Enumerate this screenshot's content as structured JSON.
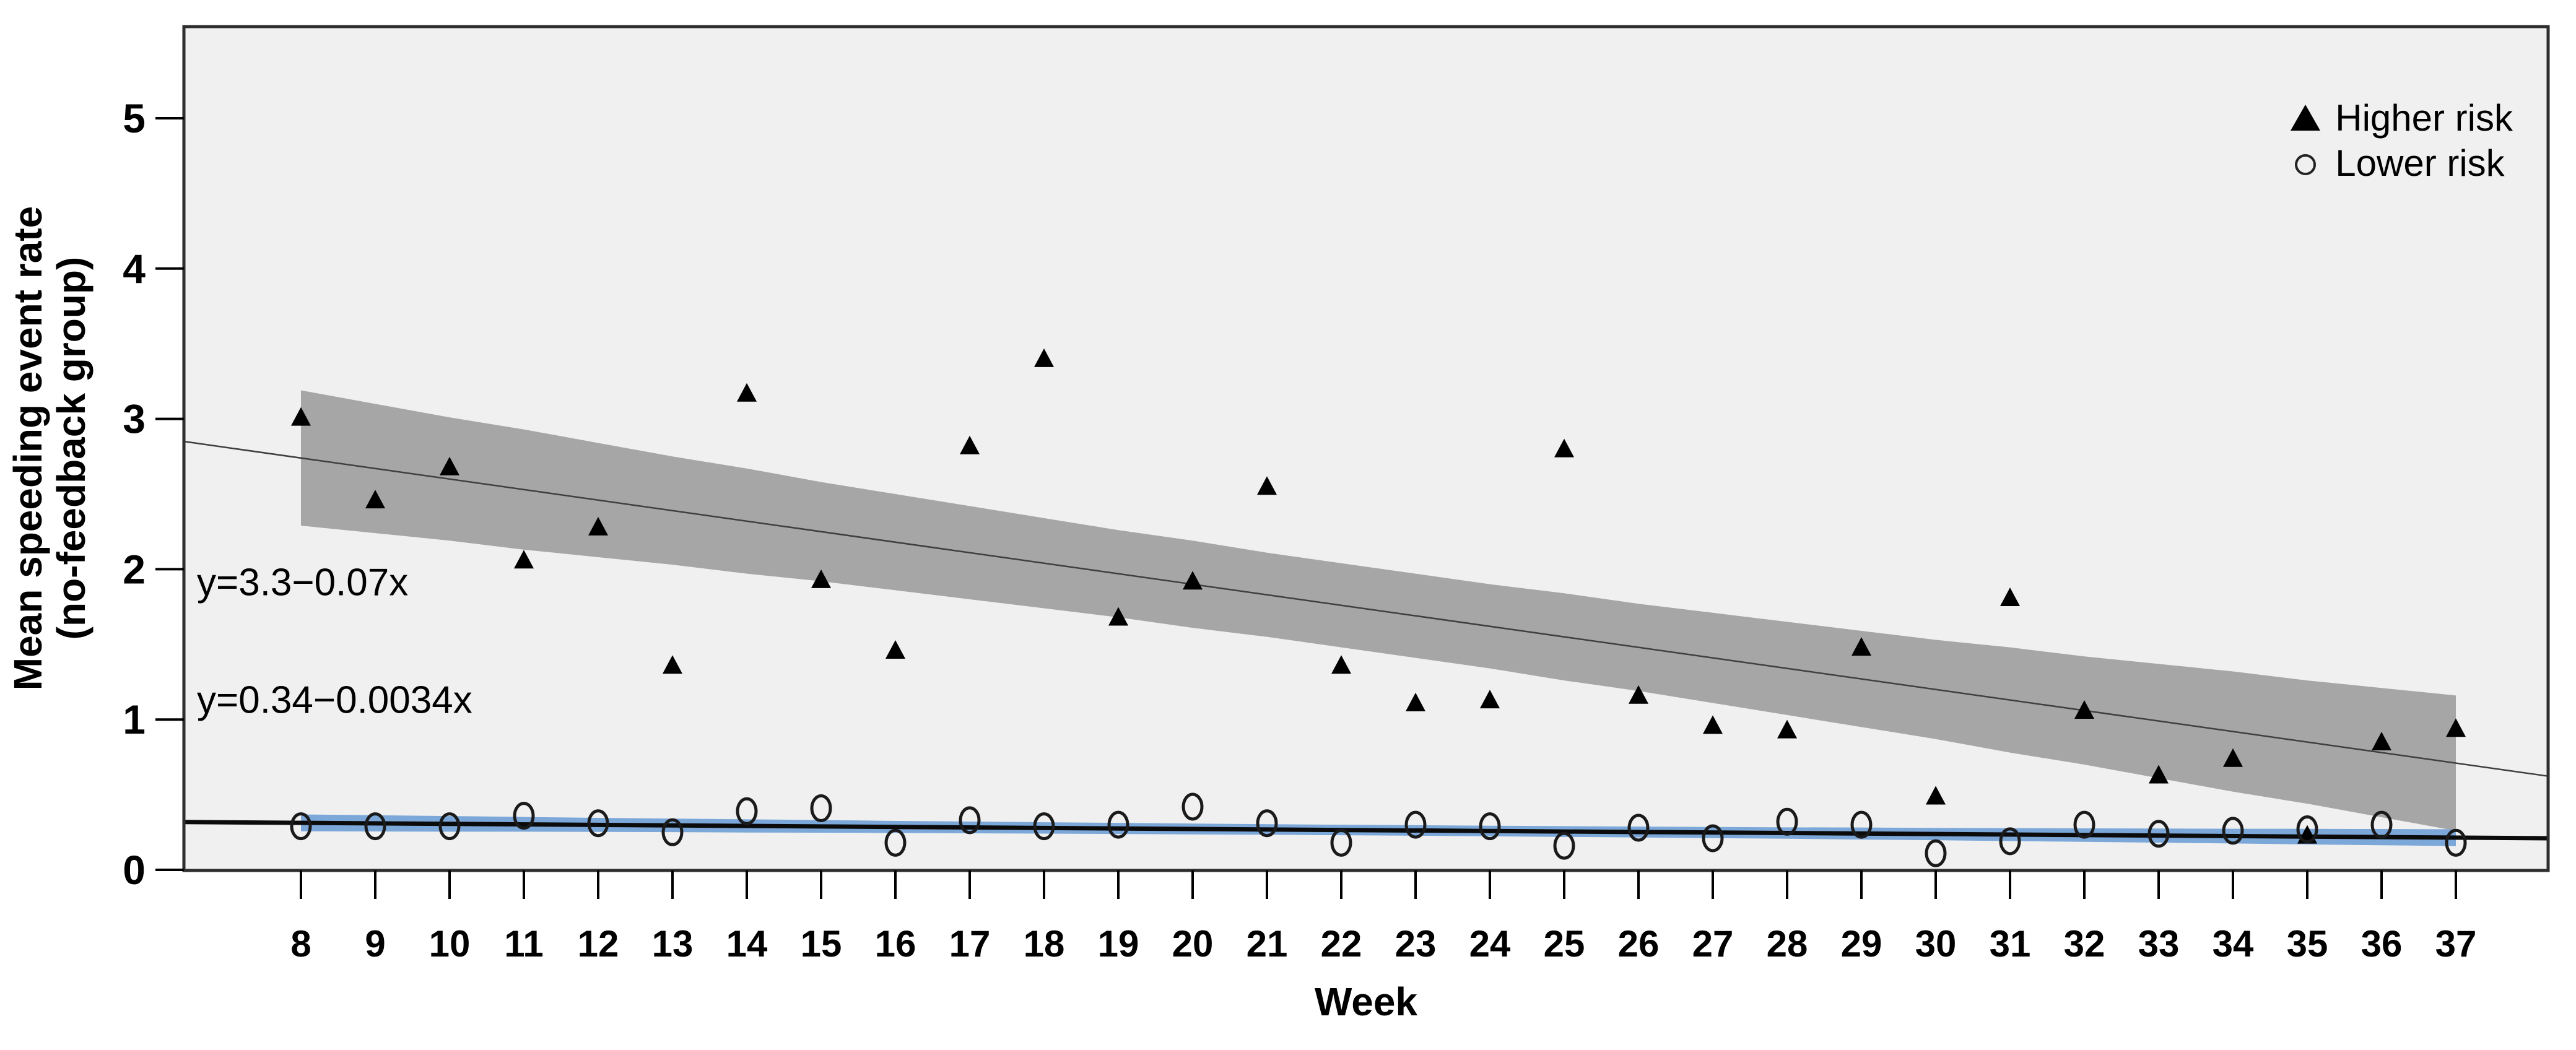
{
  "figure": {
    "xlabel": "Week",
    "ylabel_line1": "Mean speeding event rate",
    "ylabel_line2": "(no-feedback group)",
    "legend": [
      {
        "label": "Higher risk",
        "marker": "filled-triangle"
      },
      {
        "label": "Lower risk",
        "marker": "open-circle"
      }
    ],
    "annotations": [
      {
        "text": "y=3.3−0.07x"
      },
      {
        "text": "y=0.34−0.0034x"
      }
    ]
  },
  "chart_data": {
    "type": "scatter",
    "title": "",
    "xlabel": "Week",
    "ylabel": "Mean speeding event rate (no-feedback group)",
    "x": [
      8,
      9,
      10,
      11,
      12,
      13,
      14,
      15,
      16,
      17,
      18,
      19,
      20,
      21,
      22,
      23,
      24,
      25,
      26,
      27,
      28,
      29,
      30,
      31,
      32,
      33,
      34,
      35,
      36,
      37
    ],
    "series": [
      {
        "name": "Higher risk",
        "marker": "triangle",
        "values": [
          3.0,
          2.45,
          2.67,
          2.05,
          2.27,
          1.35,
          3.16,
          1.92,
          1.45,
          2.81,
          3.39,
          1.67,
          1.91,
          2.54,
          1.35,
          1.1,
          1.12,
          2.79,
          1.15,
          0.95,
          0.92,
          1.47,
          0.48,
          1.8,
          1.05,
          0.62,
          0.73,
          0.22,
          0.84,
          0.93
        ]
      },
      {
        "name": "Lower risk",
        "marker": "circle",
        "values": [
          0.29,
          0.29,
          0.29,
          0.36,
          0.31,
          0.25,
          0.39,
          0.41,
          0.18,
          0.33,
          0.29,
          0.3,
          0.42,
          0.31,
          0.18,
          0.3,
          0.29,
          0.16,
          0.28,
          0.21,
          0.32,
          0.3,
          0.11,
          0.19,
          0.3,
          0.24,
          0.26,
          0.27,
          0.3,
          0.18
        ]
      }
    ],
    "regression": [
      {
        "series": "Higher risk",
        "equation": "y=3.3−0.07x",
        "intercept": 3.3,
        "slope": -0.07,
        "band_halfwidth": [
          0.45,
          0.43,
          0.41,
          0.4,
          0.38,
          0.36,
          0.35,
          0.33,
          0.32,
          0.31,
          0.3,
          0.29,
          0.29,
          0.28,
          0.28,
          0.28,
          0.28,
          0.29,
          0.29,
          0.3,
          0.31,
          0.32,
          0.33,
          0.35,
          0.36,
          0.38,
          0.4,
          0.41,
          0.43,
          0.45
        ]
      },
      {
        "series": "Lower risk",
        "equation": "y=0.34−0.0034x",
        "intercept": 0.34,
        "slope": -0.0034,
        "band_halfwidth": [
          0.056,
          0.054,
          0.052,
          0.049,
          0.047,
          0.045,
          0.044,
          0.042,
          0.04,
          0.039,
          0.038,
          0.037,
          0.036,
          0.035,
          0.035,
          0.035,
          0.035,
          0.036,
          0.036,
          0.037,
          0.038,
          0.04,
          0.041,
          0.043,
          0.045,
          0.047,
          0.049,
          0.052,
          0.054,
          0.056
        ]
      }
    ],
    "x_ticks": [
      8,
      9,
      10,
      11,
      12,
      13,
      14,
      15,
      16,
      17,
      18,
      19,
      20,
      21,
      22,
      23,
      24,
      25,
      26,
      27,
      28,
      29,
      30,
      31,
      32,
      33,
      34,
      35,
      36,
      37
    ],
    "y_ticks": [
      0,
      1,
      2,
      3,
      4,
      5
    ],
    "xlim": [
      6.43,
      38.24
    ],
    "ylim": [
      0,
      5.61
    ],
    "grid": false,
    "legend_position": "top-right",
    "colors": {
      "plot_bg": "#f0f0f0",
      "frame": "#2e2e2e",
      "higher_band": "#a6a6a6",
      "higher_line": "#3f3f3f",
      "lower_band": "#7ba7d9",
      "lower_line": "#0b0b0b",
      "marker": "#000000",
      "circle_stroke": "#1a1a1a"
    }
  }
}
